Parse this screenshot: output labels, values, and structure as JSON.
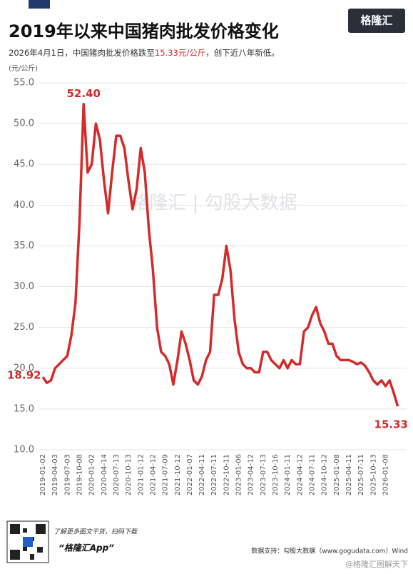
{
  "logo": "格隆汇",
  "watermark": "格隆汇 | 勾股大数据",
  "footer": {
    "promo": "了解更多图文干货，扫码下载",
    "app": "“格隆汇App”",
    "source": "数据支持：勾股大数据（www.gogudata.com）Wind",
    "credit": "@格隆汇图解天下"
  },
  "chart_data": {
    "type": "line",
    "title": "2019年以来中国猪肉批发价格变化",
    "subtitle": [
      "2026年4月1日，中国猪肉批发价格跌至",
      "15.33元/公斤",
      "，创下近八年新低。"
    ],
    "y_label": "(元/公斤)",
    "ylim": [
      10,
      55
    ],
    "yticks": [
      {
        "value": 10,
        "label": "10.0"
      },
      {
        "value": 15,
        "label": "15.0"
      },
      {
        "value": 20,
        "label": "20.0"
      },
      {
        "value": 25,
        "label": "25.0"
      },
      {
        "value": 30,
        "label": "30.0"
      },
      {
        "value": 35,
        "label": "35.0"
      },
      {
        "value": 40,
        "label": "40.0"
      },
      {
        "value": 45,
        "label": "45.0"
      },
      {
        "value": 50,
        "label": "50.0"
      },
      {
        "value": 55,
        "label": "55.0"
      }
    ],
    "grid": true,
    "color": "#d42a2a",
    "categories": [
      "2019-01-02",
      null,
      null,
      "2019-04-03",
      null,
      null,
      "2019-07-03",
      null,
      null,
      "2019-10-08",
      null,
      null,
      "2020-01-02",
      null,
      null,
      "2020-04-14",
      null,
      null,
      "2020-07-13",
      null,
      null,
      "2020-10-13",
      null,
      null,
      "2021-01-12",
      null,
      null,
      "2021-04-12",
      null,
      null,
      "2021-07-09",
      null,
      null,
      "2021-10-12",
      null,
      null,
      "2022-01-07",
      null,
      null,
      "2022-04-11",
      null,
      null,
      "2022-07-11",
      null,
      null,
      "2022-10-11",
      null,
      null,
      "2023-01-06",
      null,
      null,
      "2023-04-12",
      null,
      null,
      "2023-07-13",
      null,
      null,
      "2023-10-16",
      null,
      null,
      "2024-01-11",
      null,
      null,
      "2024-04-12",
      null,
      null,
      "2024-07-11",
      null,
      null,
      "2024-10-12",
      null,
      null,
      "2025-01-08",
      null,
      null,
      "2025-04-11",
      null,
      null,
      "2025-07-11",
      null,
      null,
      "2025-10-13",
      null,
      null,
      "2026-01-08",
      null,
      null,
      null
    ],
    "values": [
      18.92,
      18.2,
      18.5,
      20,
      20.5,
      21,
      21.5,
      24,
      28,
      38,
      52.4,
      44,
      45,
      50,
      48,
      43,
      39,
      44,
      48.5,
      48.5,
      47,
      43,
      39.5,
      42,
      47,
      44,
      37,
      32,
      25,
      22,
      21.5,
      20.5,
      18,
      21,
      24.5,
      23,
      21,
      18.5,
      18,
      19,
      21,
      22,
      29,
      29,
      31,
      35,
      32,
      26,
      22,
      20.5,
      20,
      20,
      19.5,
      19.5,
      22,
      22,
      21,
      20.5,
      20,
      21,
      20,
      21,
      20.5,
      20.5,
      24.5,
      25,
      26.5,
      27.5,
      25.5,
      24.5,
      23,
      23,
      21.5,
      21,
      21,
      21,
      20.8,
      20.5,
      20.7,
      20.3,
      19.5,
      18.5,
      18,
      18.5,
      17.8,
      18.5,
      17,
      15.33
    ],
    "value_labels": [
      "18.92",
      null,
      null,
      null,
      null,
      null,
      null,
      null,
      null,
      null,
      "52.40",
      null,
      null,
      null,
      null,
      null,
      null,
      null,
      null,
      null,
      null,
      null,
      null,
      null,
      null,
      null,
      null,
      null,
      null,
      null,
      null,
      null,
      null,
      null,
      null,
      null,
      null,
      null,
      null,
      null,
      null,
      null,
      null,
      null,
      null,
      null,
      null,
      null,
      null,
      null,
      null,
      null,
      null,
      null,
      null,
      null,
      null,
      null,
      null,
      null,
      null,
      null,
      null,
      null,
      null,
      null,
      null,
      null,
      null,
      null,
      null,
      null,
      null,
      null,
      null,
      null,
      null,
      null,
      null,
      null,
      null,
      null,
      null,
      null,
      null,
      null,
      null,
      "15.33"
    ]
  }
}
